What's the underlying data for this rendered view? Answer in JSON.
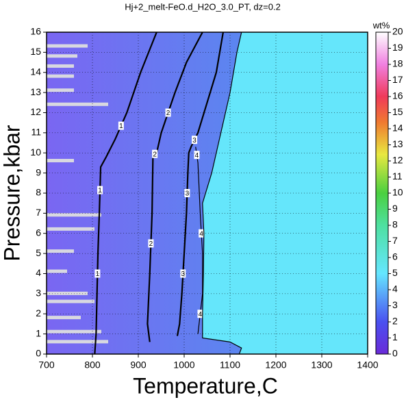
{
  "chart_data": {
    "type": "contour",
    "title": "Hj+2_melt-FeO.d_H2O_3.0_PT, dz=0.2",
    "xlabel": "Temperature,C",
    "ylabel": "Pressure,kbar",
    "xlim": [
      700,
      1400
    ],
    "xticks": [
      700,
      800,
      900,
      1000,
      1100,
      1200,
      1300,
      1400
    ],
    "ylim": [
      0,
      16
    ],
    "yticks": [
      0,
      1,
      2,
      3,
      4,
      5,
      6,
      7,
      8,
      9,
      10,
      11,
      12,
      13,
      14,
      15,
      16
    ],
    "grid": true,
    "colorbar": {
      "label": "wt%",
      "lim": [
        0,
        20
      ],
      "ticks": [
        0,
        1,
        2,
        3,
        4,
        5,
        6,
        7,
        8,
        9,
        10,
        11,
        12,
        13,
        14,
        15,
        16,
        17,
        18,
        19,
        20
      ]
    },
    "contours": [
      {
        "level": 1,
        "x": [
          805,
          808,
          810,
          812,
          815,
          818,
          830,
          850,
          875,
          905,
          940
        ],
        "y": [
          0,
          1,
          3,
          5,
          7,
          9.3,
          9.8,
          10.7,
          12,
          14,
          16
        ]
      },
      {
        "level": 2,
        "x": [
          925,
          920,
          925,
          930,
          932,
          940,
          950,
          980,
          1005,
          1040
        ],
        "y": [
          0.6,
          1.5,
          4,
          7,
          9.9,
          10,
          11,
          13,
          14.5,
          16
        ]
      },
      {
        "level": 3,
        "x": [
          985,
          990,
          995,
          1000,
          1005,
          1008,
          1010,
          1015,
          1030,
          1050,
          1070,
          1085
        ],
        "y": [
          0.9,
          1.5,
          3,
          5,
          7,
          9,
          10,
          10.3,
          11,
          12.5,
          14,
          16
        ]
      },
      {
        "level": 4,
        "x": [
          1030,
          1040,
          1040,
          1035,
          1030,
          1025
        ],
        "y": [
          1,
          3,
          5,
          7,
          9.5,
          10.3
        ]
      },
      {
        "level": 5,
        "x": [
          1120,
          1125,
          1100,
          1040,
          1040,
          1042,
          1043,
          1040,
          1060,
          1080,
          1100,
          1115,
          1125
        ],
        "y": [
          0,
          0.3,
          0.6,
          0.8,
          2,
          4,
          6,
          7.5,
          9,
          11,
          13,
          15,
          16
        ]
      }
    ]
  }
}
